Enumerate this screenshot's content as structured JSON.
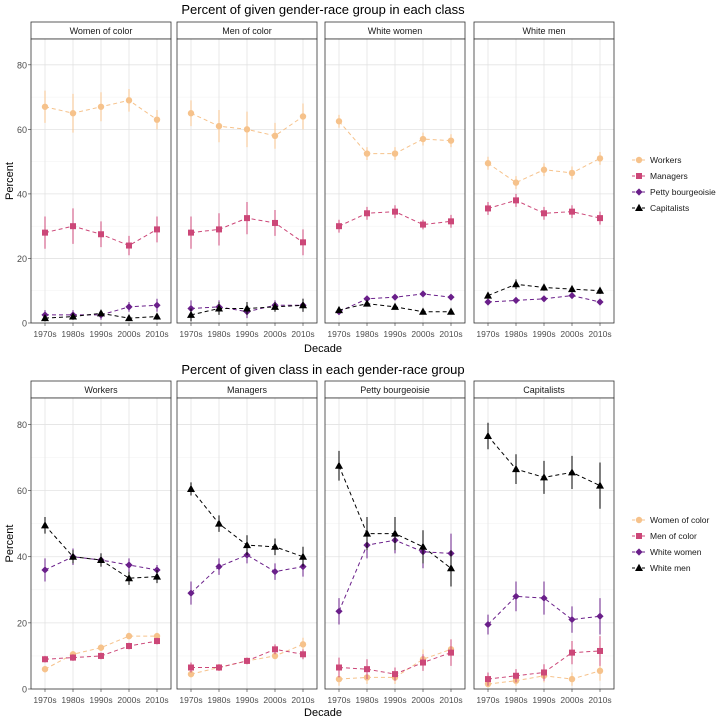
{
  "colors": {
    "workers": "#f6c28b",
    "managers": "#cc4778",
    "petty": "#6a1f8a",
    "capitalists": "#000000",
    "women_of_color": "#f6c28b",
    "men_of_color": "#cc4778",
    "white_women": "#6a1f8a",
    "white_men": "#000000"
  },
  "chart_data": [
    {
      "type": "line",
      "title": "Percent of given gender-race group in each class",
      "xlabel": "Decade",
      "ylabel": "Percent",
      "ylim": [
        0,
        88
      ],
      "yticks": [
        0,
        20,
        40,
        60,
        80
      ],
      "categories": [
        "1970s",
        "1980s",
        "1990s",
        "2000s",
        "2010s"
      ],
      "grid": true,
      "legend_position": "right",
      "legend": [
        "Workers",
        "Managers",
        "Petty bourgeoisie",
        "Capitalists"
      ],
      "panels": [
        {
          "label": "Women of color",
          "series": [
            {
              "name": "Workers",
              "values": [
                67,
                65,
                67,
                69,
                63
              ],
              "err": [
                5,
                6,
                4.5,
                3.5,
                3
              ]
            },
            {
              "name": "Managers",
              "values": [
                28,
                30,
                27.5,
                24,
                29
              ],
              "err": [
                5,
                5.5,
                4,
                3,
                4
              ]
            },
            {
              "name": "Petty bourgeoisie",
              "values": [
                2.5,
                2.5,
                2.5,
                5,
                5.5
              ],
              "err": [
                1.5,
                1.5,
                1.5,
                1.5,
                2
              ]
            },
            {
              "name": "Capitalists",
              "values": [
                1.5,
                2,
                3,
                1.5,
                2
              ],
              "err": [
                1,
                1,
                1,
                0.5,
                1
              ]
            }
          ]
        },
        {
          "label": "Men of color",
          "series": [
            {
              "name": "Workers",
              "values": [
                65,
                61,
                60,
                58,
                64
              ],
              "err": [
                4,
                5,
                5.5,
                4,
                4
              ]
            },
            {
              "name": "Managers",
              "values": [
                28,
                29,
                32.5,
                31,
                25
              ],
              "err": [
                5,
                5,
                5,
                4,
                4
              ]
            },
            {
              "name": "Petty bourgeoisie",
              "values": [
                4.5,
                5,
                3.5,
                5.5,
                5.5
              ],
              "err": [
                2.5,
                2,
                2,
                1.5,
                2
              ]
            },
            {
              "name": "Capitalists",
              "values": [
                2.5,
                4.5,
                4.5,
                5,
                5.5
              ],
              "err": [
                2,
                2,
                2,
                1.5,
                2
              ]
            }
          ]
        },
        {
          "label": "White women",
          "series": [
            {
              "name": "Workers",
              "values": [
                62.5,
                52.5,
                52.5,
                57,
                56.5
              ],
              "err": [
                2,
                2,
                2,
                2,
                2
              ]
            },
            {
              "name": "Managers",
              "values": [
                30,
                34,
                34.5,
                30.5,
                31.5
              ],
              "err": [
                2,
                2,
                2,
                1.5,
                2
              ]
            },
            {
              "name": "Petty bourgeoisie",
              "values": [
                3.5,
                7.5,
                8,
                9,
                8
              ],
              "err": [
                1,
                1,
                1,
                1,
                1
              ]
            },
            {
              "name": "Capitalists",
              "values": [
                4,
                6,
                5,
                3.5,
                3.5
              ],
              "err": [
                0.8,
                0.8,
                0.8,
                0.5,
                0.5
              ]
            }
          ]
        },
        {
          "label": "White men",
          "series": [
            {
              "name": "Workers",
              "values": [
                49.5,
                43.5,
                47.5,
                46.5,
                51
              ],
              "err": [
                2,
                2,
                2,
                2,
                2
              ]
            },
            {
              "name": "Managers",
              "values": [
                35.5,
                38,
                34,
                34.5,
                32.5
              ],
              "err": [
                2,
                2,
                2,
                2,
                2
              ]
            },
            {
              "name": "Petty bourgeoisie",
              "values": [
                6.5,
                7,
                7.5,
                8.5,
                6.5
              ],
              "err": [
                1,
                1,
                1,
                1,
                1
              ]
            },
            {
              "name": "Capitalists",
              "values": [
                8.5,
                12,
                11,
                10.5,
                10
              ],
              "err": [
                1,
                1.5,
                1,
                1,
                1
              ]
            }
          ]
        }
      ]
    },
    {
      "type": "line",
      "title": "Percent of given class in each gender-race group",
      "xlabel": "Decade",
      "ylabel": "Percent",
      "ylim": [
        0,
        88
      ],
      "yticks": [
        0,
        20,
        40,
        60,
        80
      ],
      "categories": [
        "1970s",
        "1980s",
        "1990s",
        "2000s",
        "2010s"
      ],
      "grid": true,
      "legend_position": "right",
      "legend": [
        "Women of color",
        "Men of color",
        "White women",
        "White men"
      ],
      "panels": [
        {
          "label": "Workers",
          "series": [
            {
              "name": "Women of color",
              "values": [
                6,
                10.5,
                12.5,
                16,
                16
              ],
              "err": [
                1,
                1,
                1,
                1,
                1
              ]
            },
            {
              "name": "Men of color",
              "values": [
                9,
                9.5,
                10,
                13,
                14.5
              ],
              "err": [
                1,
                1,
                1,
                1,
                1
              ]
            },
            {
              "name": "White women",
              "values": [
                36,
                40,
                39,
                37.5,
                36
              ],
              "err": [
                3.5,
                2.5,
                2,
                2,
                1.5
              ]
            },
            {
              "name": "White men",
              "values": [
                49.5,
                40,
                39,
                33.5,
                34
              ],
              "err": [
                2.5,
                2,
                2,
                2,
                2
              ]
            }
          ]
        },
        {
          "label": "Managers",
          "series": [
            {
              "name": "Women of color",
              "values": [
                4.5,
                6.5,
                8.5,
                10,
                13.5
              ],
              "err": [
                1,
                1,
                1,
                1,
                2
              ]
            },
            {
              "name": "Men of color",
              "values": [
                6.5,
                6.5,
                8.5,
                12,
                10.5
              ],
              "err": [
                1.5,
                1,
                1,
                1.5,
                1.5
              ]
            },
            {
              "name": "White women",
              "values": [
                29,
                37,
                40.5,
                35.5,
                37
              ],
              "err": [
                3.5,
                2.5,
                2.5,
                2.5,
                3
              ]
            },
            {
              "name": "White men",
              "values": [
                60.5,
                50,
                43.5,
                43,
                40
              ],
              "err": [
                2,
                2.5,
                3,
                2.5,
                3
              ]
            }
          ]
        },
        {
          "label": "Petty bourgeoisie",
          "series": [
            {
              "name": "Women of color",
              "values": [
                3,
                3.5,
                3.5,
                9,
                12
              ],
              "err": [
                2,
                2,
                2,
                3,
                3
              ]
            },
            {
              "name": "Men of color",
              "values": [
                6.5,
                6,
                4.5,
                8,
                11
              ],
              "err": [
                3,
                3,
                2,
                2.5,
                4
              ]
            },
            {
              "name": "White women",
              "values": [
                23.5,
                43.5,
                45,
                41.5,
                41
              ],
              "err": [
                4,
                4,
                4,
                5,
                6
              ]
            },
            {
              "name": "White men",
              "values": [
                67.5,
                47,
                47,
                43,
                36.5
              ],
              "err": [
                4.5,
                5,
                5,
                5,
                5.5
              ]
            }
          ]
        },
        {
          "label": "Capitalists",
          "series": [
            {
              "name": "Women of color",
              "values": [
                1.5,
                2.5,
                4,
                3,
                5.5
              ],
              "err": [
                1,
                1.5,
                2,
                2,
                3
              ]
            },
            {
              "name": "Men of color",
              "values": [
                3,
                4,
                5,
                11,
                11.5
              ],
              "err": [
                2,
                2,
                2.5,
                3.5,
                4.5
              ]
            },
            {
              "name": "White women",
              "values": [
                19.5,
                28,
                27.5,
                21,
                22
              ],
              "err": [
                3,
                4.5,
                5,
                4,
                5.5
              ]
            },
            {
              "name": "White men",
              "values": [
                76.5,
                66.5,
                64,
                65.5,
                61.5
              ],
              "err": [
                4,
                4.5,
                5,
                5,
                7
              ]
            }
          ]
        }
      ]
    }
  ]
}
